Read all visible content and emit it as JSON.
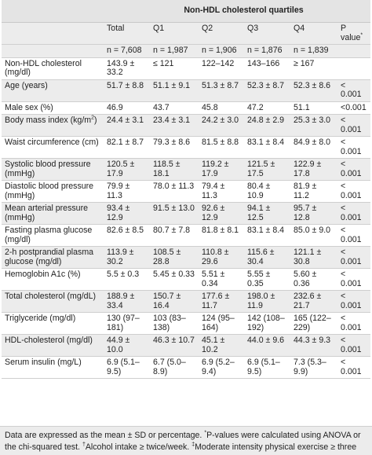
{
  "title": "Non-HDL cholesterol quartiles",
  "header": {
    "labels": [
      "",
      "Total",
      "Q1",
      "Q2",
      "Q3",
      "Q4",
      "P value"
    ],
    "p_marker": "*",
    "n_row": [
      "",
      "n = 7,608",
      "n = 1,987",
      "n = 1,906",
      "n = 1,876",
      "n = 1,839",
      ""
    ]
  },
  "rows": [
    {
      "label": "Non-HDL cholesterol (mg/dl)",
      "total": "143.9 ± 33.2",
      "q1": "≤ 121",
      "q2": "122–142",
      "q3": "143–166",
      "q4": "≥ 167",
      "p": ""
    },
    {
      "label": "Age (years)",
      "total": "51.7 ± 8.8",
      "q1": "51.1 ± 9.1",
      "q2": "51.3 ± 8.7",
      "q3": "52.3 ± 8.7",
      "q4": "52.3 ± 8.6",
      "p": "< 0.001"
    },
    {
      "label": "Male sex (%)",
      "total": "46.9",
      "q1": "43.7",
      "q2": "45.8",
      "q3": "47.2",
      "q4": "51.1",
      "p": "<0.001"
    },
    {
      "label": "Body mass index (kg/m",
      "label_sup": "2",
      "label_tail": ")",
      "total": "24.4 ± 3.1",
      "q1": "23.4 ± 3.1",
      "q2": "24.2 ± 3.0",
      "q3": "24.8 ± 2.9",
      "q4": "25.3 ± 3.0",
      "p": "< 0.001"
    },
    {
      "label": "Waist circumference (cm)",
      "total": "82.1 ± 8.7",
      "q1": "79.3 ± 8.6",
      "q2": "81.5 ± 8.8",
      "q3": "83.1 ± 8.4",
      "q4": "84.9 ± 8.0",
      "p": "< 0.001"
    },
    {
      "label": "Systolic blood pressure (mmHg)",
      "total": "120.5 ± 17.9",
      "q1": "118.5 ± 18.1",
      "q2": "119.2 ± 17.9",
      "q3": "121.5 ± 17.5",
      "q4": "122.9 ± 17.8",
      "p": "< 0.001"
    },
    {
      "label": "Diastolic blood pressure (mmHg)",
      "total": "79.9 ± 11.3",
      "q1": "78.0 ± 11.3",
      "q2": "79.4 ± 11.3",
      "q3": "80.4 ± 10.9",
      "q4": "81.9 ± 11.2",
      "p": "< 0.001"
    },
    {
      "label": "Mean arterial pressure (mmHg)",
      "total": "93.4 ± 12.9",
      "q1": "91.5 ± 13.0",
      "q2": "92.6 ± 12.9",
      "q3": "94.1 ± 12.5",
      "q4": "95.7 ± 12.8",
      "p": "< 0.001"
    },
    {
      "label": "Fasting plasma glucose (mg/dl)",
      "total": "82.6 ± 8.5",
      "q1": "80.7 ± 7.8",
      "q2": "81.8 ± 8.1",
      "q3": "83.1 ± 8.4",
      "q4": "85.0 ± 9.0",
      "p": "< 0.001"
    },
    {
      "label": "2-h postprandial plasma glucose (mg/dl)",
      "total": "113.9 ± 30.2",
      "q1": "108.5 ± 28.8",
      "q2": "110.8 ± 29.6",
      "q3": "115.6 ± 30.4",
      "q4": "121.1 ± 30.8",
      "p": "< 0.001"
    },
    {
      "label": "Hemoglobin A1c (%)",
      "total": "5.5 ± 0.3",
      "q1": "5.45 ± 0.33",
      "q2": "5.51 ± 0.34",
      "q3": "5.55 ± 0.35",
      "q4": "5.60 ± 0.36",
      "p": "< 0.001"
    },
    {
      "label": "Total cholesterol (mg/dL)",
      "total": "188.9 ± 33.4",
      "q1": "150.7 ± 16.4",
      "q2": "177.6 ± 11.7",
      "q3": "198.0 ± 11.9",
      "q4": "232.6 ± 21.7",
      "p": "< 0.001"
    },
    {
      "label": "Triglyceride (mg/dl)",
      "total": "130 (97–181)",
      "q1": "103 (83–138)",
      "q2": "124 (95–164)",
      "q3": "142 (108–192)",
      "q4": "165 (122–229)",
      "p": "< 0.001"
    },
    {
      "label": "HDL-cholesterol (mg/dl)",
      "total": "44.9 ± 10.0",
      "q1": "46.3 ± 10.7",
      "q2": "45.1 ± 10.2",
      "q3": "44.0 ± 9.6",
      "q4": "44.3 ± 9.3",
      "p": "< 0.001"
    },
    {
      "label": "Serum insulin (mg/L)",
      "total": "6.9 (5.1–9.5)",
      "q1": "6.7 (5.0–8.9)",
      "q2": "6.9 (5.2–9.4)",
      "q3": "6.9 (5.1–9.5)",
      "q4": "7.3 (5.3–9.9)",
      "p": "< 0.001"
    }
  ],
  "footer": {
    "part1": "Data are expressed as the mean ± SD or percentage. ",
    "sup1": "*",
    "part2": "P-values were calculated using ANOVA or the chi-squared test. ",
    "sup2": "†",
    "part3": "Alcohol intake ≥ twice/week. ",
    "sup3": "‡",
    "part4": "Moderate intensity physical exercise ≥ three"
  }
}
